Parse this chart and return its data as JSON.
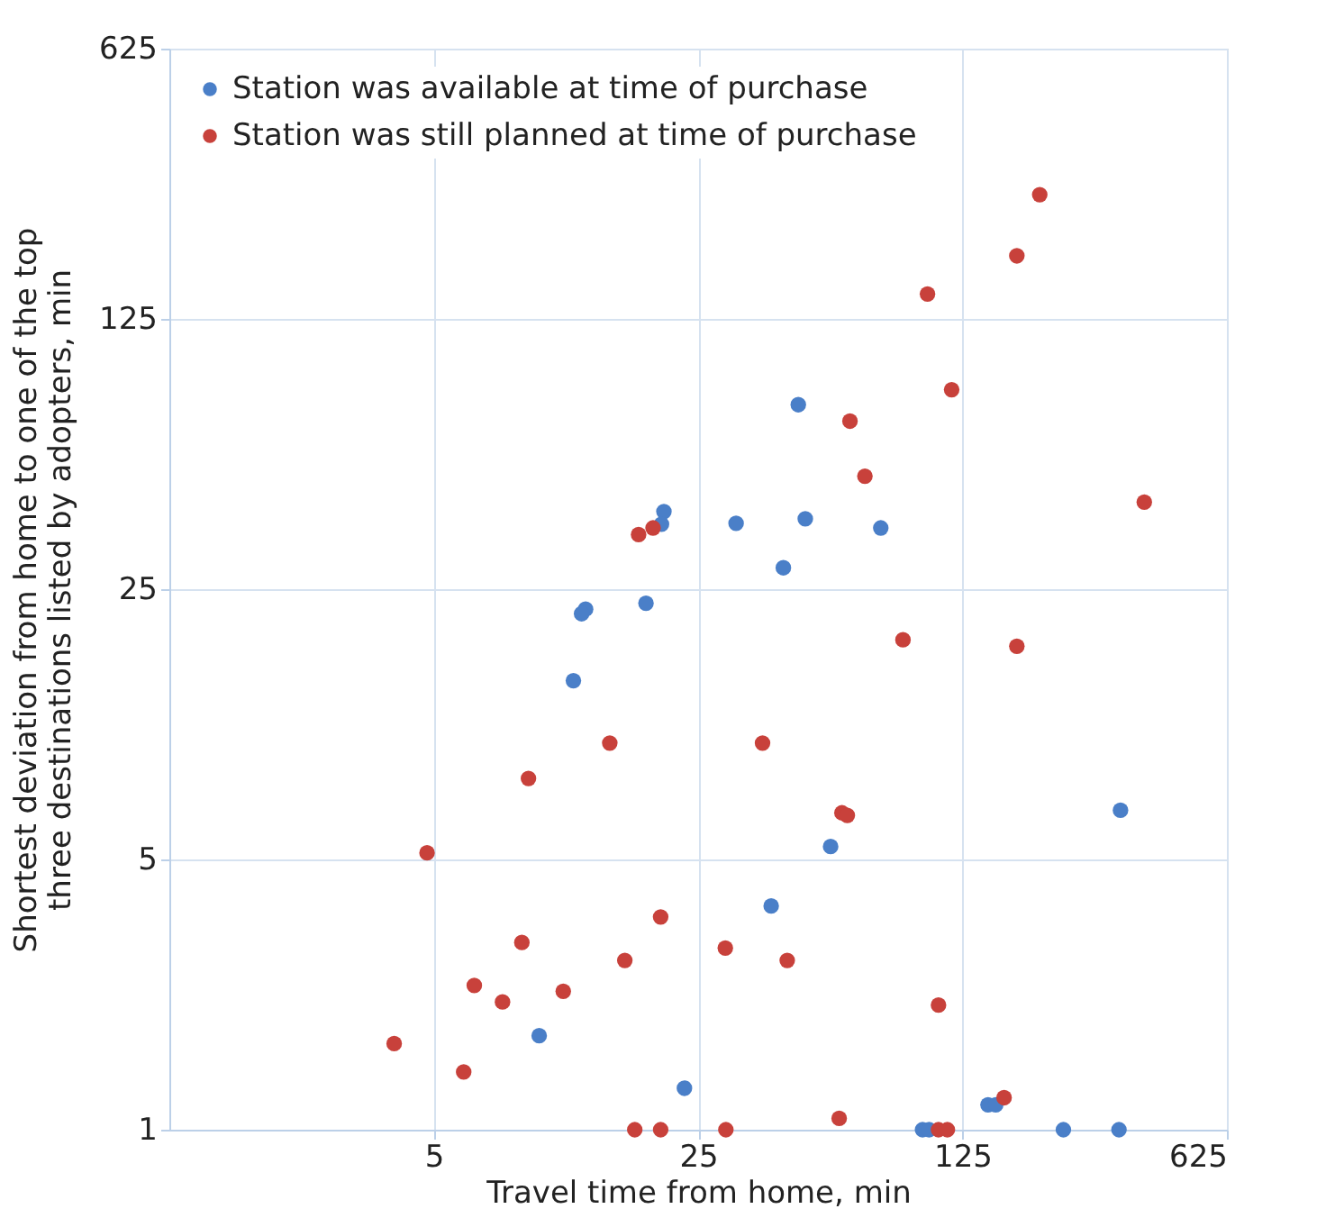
{
  "chart_data": {
    "type": "scatter",
    "xlabel": "Travel time from home, min",
    "ylabel": "Shortest deviation from home to one of the top\nthree destinations listed by adopters, min",
    "log": "xy",
    "xlim": [
      1,
      625
    ],
    "ylim": [
      1,
      625
    ],
    "xticks": [
      5,
      25,
      125,
      625
    ],
    "yticks": [
      1,
      5,
      25,
      125,
      625
    ],
    "grid": true,
    "legend": "top left",
    "marker": "circle",
    "series": [
      {
        "name": "Station was available at time of purchase",
        "color": "#4a7fc8",
        "x": [
          20.3,
          20,
          31.5,
          46,
          48,
          76,
          42,
          18.2,
          12.6,
          12.3,
          11.7,
          327,
          56,
          39,
          9.5,
          23,
          146,
          153,
          98,
          102,
          231,
          324
        ],
        "values": [
          39.7,
          36.8,
          37,
          75,
          38,
          36,
          28.4,
          23,
          22.2,
          21.6,
          14.5,
          6.7,
          5.4,
          3.79,
          1.75,
          1.28,
          1.16,
          1.16,
          1,
          1,
          1,
          1
        ]
      },
      {
        "name": "Station was still planned at time of purchase",
        "color": "#c8413b",
        "x": [
          200,
          174,
          101,
          117,
          63,
          69,
          378,
          19,
          17.4,
          87,
          174,
          14.6,
          37,
          8.9,
          4.8,
          60,
          62,
          19.9,
          8.55,
          16,
          29.5,
          43,
          6.4,
          7.6,
          11,
          108,
          3.93,
          6.0,
          161,
          59,
          17,
          19.9,
          29.6,
          108,
          114
        ],
        "values": [
          262,
          182,
          145,
          82,
          68,
          49,
          42,
          36,
          34.6,
          18.5,
          17.8,
          10,
          10,
          8.1,
          5.2,
          6.6,
          6.5,
          3.55,
          3.05,
          2.74,
          2.95,
          2.74,
          2.36,
          2.14,
          2.28,
          2.1,
          1.67,
          1.41,
          1.21,
          1.07,
          1,
          1,
          1,
          1,
          1
        ]
      }
    ]
  }
}
